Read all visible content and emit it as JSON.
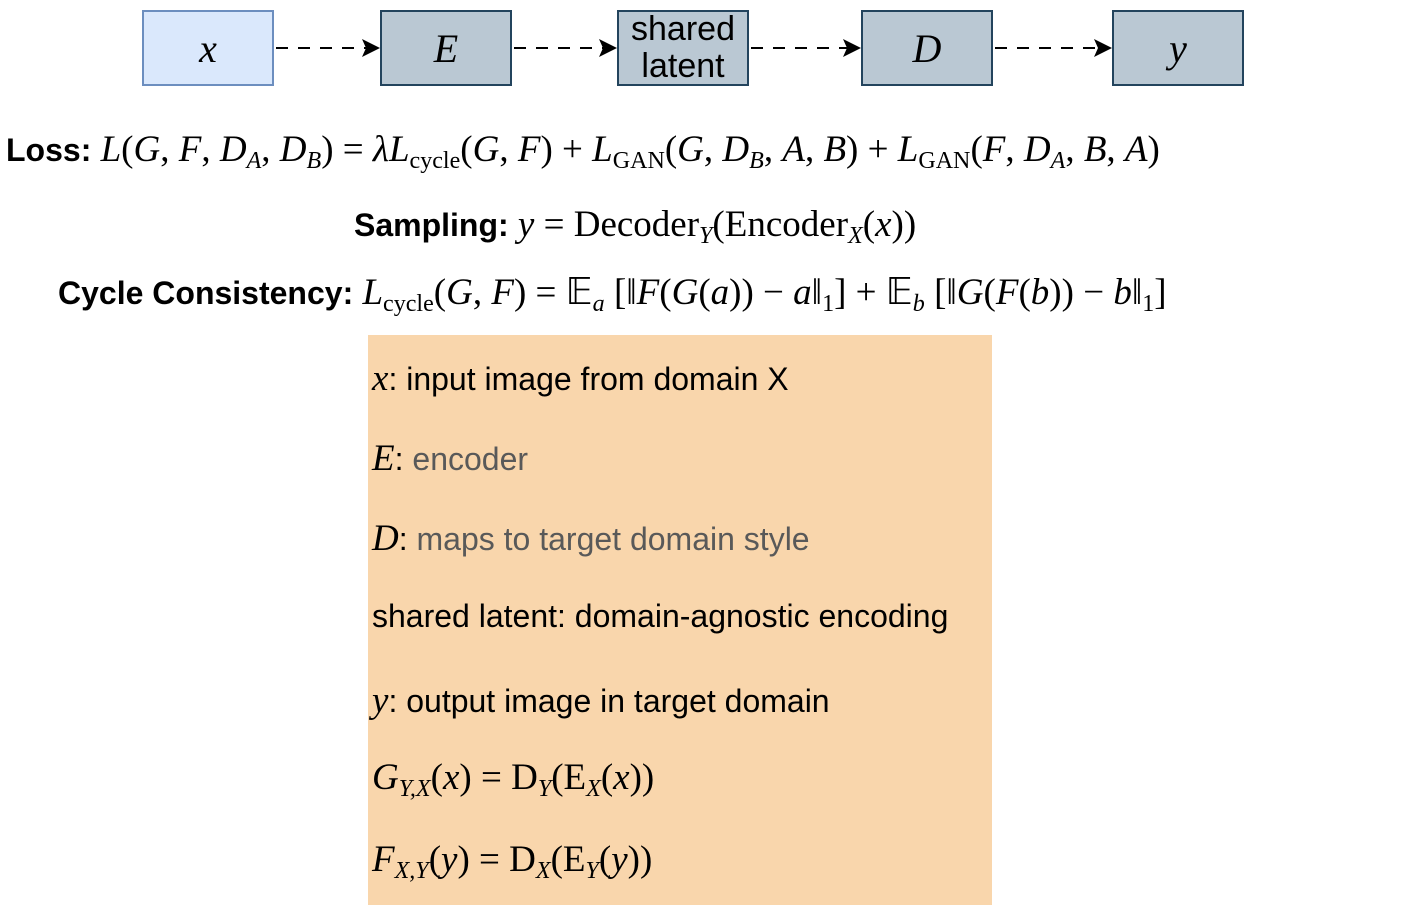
{
  "pipeline": {
    "nodes": [
      {
        "id": "x",
        "label": "x"
      },
      {
        "id": "encoder",
        "label": "E"
      },
      {
        "id": "latent",
        "label_line1": "shared",
        "label_line2": "latent"
      },
      {
        "id": "decoder",
        "label": "D"
      },
      {
        "id": "y",
        "label": "y"
      }
    ]
  },
  "equations": {
    "loss": {
      "label": "Loss:",
      "L": "L",
      "G": "G",
      "F": "F",
      "D": "D",
      "A": "A",
      "B": "B",
      "lambda": "λ",
      "cycle": "cycle",
      "gan": "GAN"
    },
    "sampling": {
      "label": "Sampling:",
      "y": "y",
      "decoder": "Decoder",
      "Y": "Y",
      "encoder": "Encoder",
      "X": "X",
      "x": "x"
    },
    "cycle": {
      "label": "Cycle Consistency:",
      "L": "L",
      "cycle": "cycle",
      "G": "G",
      "F": "F",
      "E": "𝔼",
      "a": "a",
      "b": "b",
      "one": "1"
    }
  },
  "legend": {
    "items": [
      {
        "symbol": "x",
        "text": ": input image from domain X"
      },
      {
        "symbol": "E",
        "text": ": ",
        "desc": "encoder"
      },
      {
        "symbol": "D",
        "text": ": ",
        "desc": "maps to target domain style"
      },
      {
        "text": "shared latent: domain-agnostic encoding"
      },
      {
        "symbol": "y",
        "text": ": output image in target domain"
      }
    ],
    "formula_g": {
      "G": "G",
      "sub": "Y,X",
      "x": "x",
      "D": "D",
      "Dsub": "Y",
      "E": "E",
      "Esub": "X"
    },
    "formula_f": {
      "F": "F",
      "sub": "X,Y",
      "y": "y",
      "D": "D",
      "Dsub": "X",
      "E": "E",
      "Esub": "Y"
    }
  },
  "colors": {
    "input_fill": "#dae8fc",
    "input_stroke": "#6c8ebf",
    "process_fill": "#bac8d3",
    "process_stroke": "#23445d",
    "legend_fill": "#f9d6ac",
    "legend_desc_text": "#595959"
  }
}
